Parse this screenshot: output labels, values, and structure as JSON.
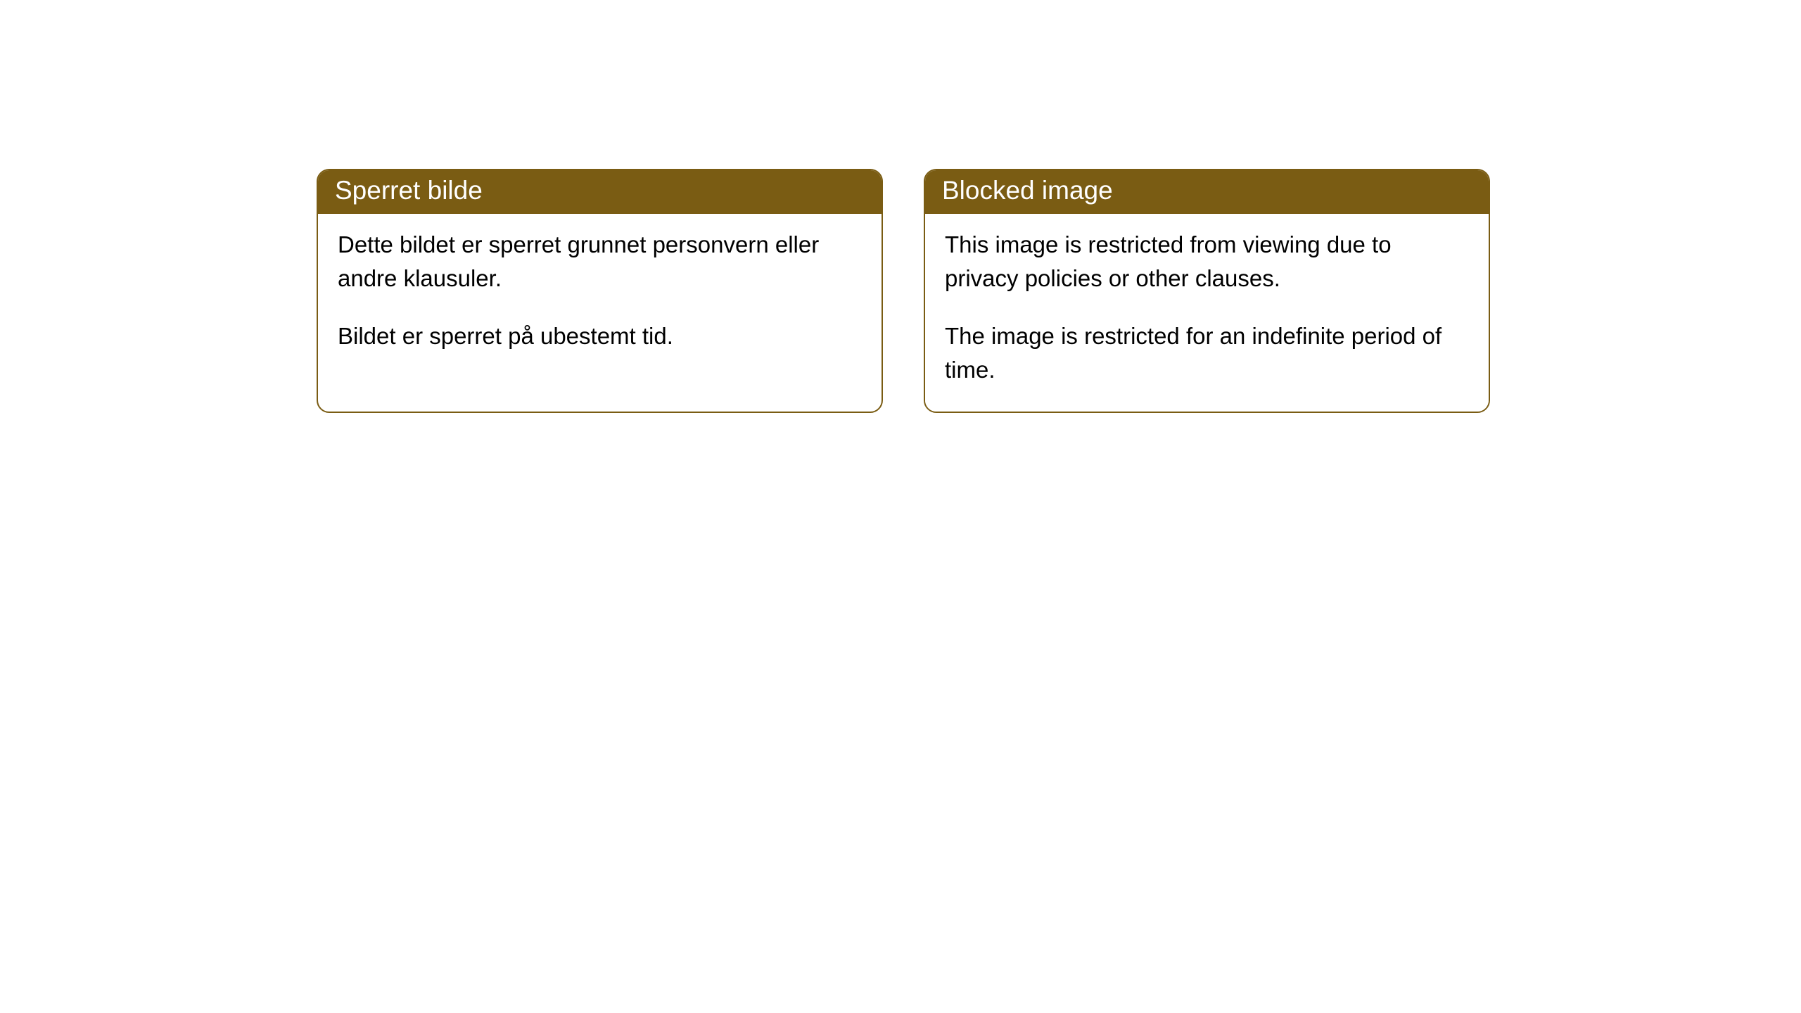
{
  "cards": [
    {
      "title": "Sperret bilde",
      "paragraph1": "Dette bildet er sperret grunnet personvern eller andre klausuler.",
      "paragraph2": "Bildet er sperret på ubestemt tid."
    },
    {
      "title": "Blocked image",
      "paragraph1": "This image is restricted from viewing due to privacy policies or other clauses.",
      "paragraph2": "The image is restricted for an indefinite period of time."
    }
  ],
  "style": {
    "header_bg": "#7a5c13",
    "header_text_color": "#ffffff",
    "body_bg": "#ffffff",
    "body_text_color": "#000000",
    "border_color": "#7a5c13",
    "border_radius": 18,
    "header_fontsize": 37,
    "body_fontsize": 33
  }
}
